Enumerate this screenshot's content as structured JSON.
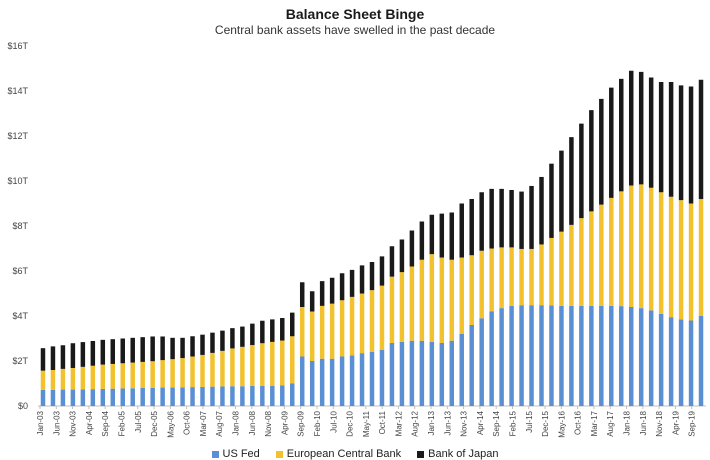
{
  "chart_data": {
    "type": "bar",
    "stacked": true,
    "title": "Balance Sheet Binge",
    "subtitle": "Central bank assets have swelled in the past decade",
    "ylim": [
      0,
      16
    ],
    "y_ticks": [
      "$0",
      "$2T",
      "$4T",
      "$6T",
      "$8T",
      "$10T",
      "$12T",
      "$14T",
      "$16T"
    ],
    "x_tick_labels": [
      "Jan-03",
      "Jun-03",
      "Nov-03",
      "Apr-04",
      "Sep-04",
      "Feb-05",
      "Jul-05",
      "Dec-05",
      "May-06",
      "Oct-06",
      "Mar-07",
      "Aug-07",
      "Jan-08",
      "Jun-08",
      "Nov-08",
      "Apr-09",
      "Sep-09",
      "Feb-10",
      "Jul-10",
      "Dec-10",
      "May-11",
      "Oct-11",
      "Mar-12",
      "Aug-12",
      "Jan-13",
      "Jun-13",
      "Nov-13",
      "Apr-14",
      "Sep-14",
      "Feb-15",
      "Jul-15",
      "Dec-15",
      "May-16",
      "Oct-16",
      "Mar-17",
      "Aug-17",
      "Jan-18",
      "Jun-18",
      "Nov-18",
      "Apr-19",
      "Sep-19"
    ],
    "legend_position": "bottom",
    "grid": false,
    "series": [
      {
        "name": "US Fed",
        "color": "#5b8fd4",
        "values": [
          0.72,
          0.72,
          0.73,
          0.73,
          0.74,
          0.75,
          0.76,
          0.77,
          0.78,
          0.79,
          0.8,
          0.81,
          0.82,
          0.82,
          0.83,
          0.84,
          0.85,
          0.86,
          0.87,
          0.88,
          0.88,
          0.89,
          0.89,
          0.9,
          0.91,
          1.0,
          2.2,
          2.0,
          2.1,
          2.1,
          2.2,
          2.25,
          2.35,
          2.4,
          2.5,
          2.8,
          2.85,
          2.9,
          2.9,
          2.85,
          2.8,
          2.9,
          3.2,
          3.6,
          3.9,
          4.2,
          4.35,
          4.45,
          4.48,
          4.48,
          4.48,
          4.47,
          4.45,
          4.45,
          4.45,
          4.45,
          4.45,
          4.45,
          4.44,
          4.4,
          4.35,
          4.25,
          4.1,
          3.95,
          3.85,
          3.8,
          4.0
        ]
      },
      {
        "name": "European Central Bank",
        "color": "#f2c12e",
        "values": [
          0.85,
          0.88,
          0.92,
          0.96,
          1.0,
          1.04,
          1.08,
          1.1,
          1.12,
          1.14,
          1.16,
          1.18,
          1.22,
          1.26,
          1.3,
          1.36,
          1.42,
          1.5,
          1.58,
          1.68,
          1.75,
          1.82,
          1.9,
          1.95,
          2.0,
          2.1,
          2.2,
          2.2,
          2.35,
          2.45,
          2.5,
          2.6,
          2.65,
          2.75,
          2.85,
          2.95,
          3.1,
          3.3,
          3.6,
          3.9,
          3.8,
          3.6,
          3.4,
          3.1,
          3.0,
          2.8,
          2.7,
          2.6,
          2.5,
          2.5,
          2.7,
          3.0,
          3.3,
          3.6,
          3.9,
          4.2,
          4.5,
          4.8,
          5.1,
          5.4,
          5.5,
          5.45,
          5.4,
          5.35,
          5.3,
          5.2,
          5.2
        ]
      },
      {
        "name": "Bank of Japan",
        "color": "#1a1a1a",
        "values": [
          1.0,
          1.05,
          1.05,
          1.1,
          1.1,
          1.1,
          1.1,
          1.1,
          1.1,
          1.1,
          1.1,
          1.1,
          1.05,
          0.95,
          0.9,
          0.9,
          0.9,
          0.9,
          0.9,
          0.9,
          0.9,
          0.95,
          1.0,
          1.0,
          1.0,
          1.05,
          1.1,
          0.9,
          1.1,
          1.15,
          1.2,
          1.2,
          1.25,
          1.25,
          1.3,
          1.35,
          1.45,
          1.6,
          1.7,
          1.75,
          1.95,
          2.1,
          2.4,
          2.5,
          2.6,
          2.65,
          2.6,
          2.55,
          2.55,
          2.8,
          3.0,
          3.3,
          3.6,
          3.9,
          4.2,
          4.5,
          4.7,
          4.9,
          5.0,
          5.1,
          5.0,
          4.9,
          4.9,
          5.1,
          5.1,
          5.2,
          5.3
        ]
      }
    ]
  }
}
